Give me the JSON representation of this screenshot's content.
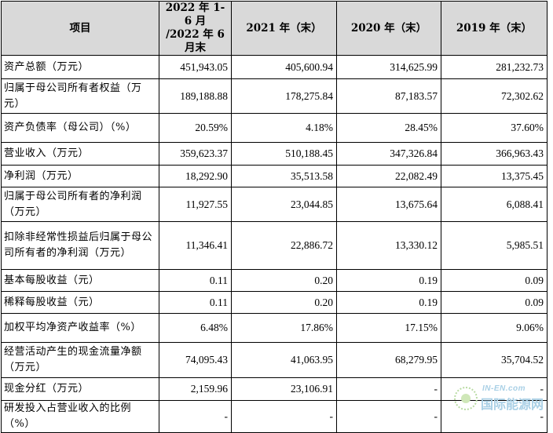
{
  "header": {
    "item": "项目",
    "col1_line1": "2022 年 1-6 月",
    "col1_line2": "/2022 年 6 月末",
    "col2": "2021 年（末）",
    "col3": "2020 年（末）",
    "col4": "2019 年（末）"
  },
  "rows": [
    {
      "label": "资产总额（万元）",
      "v1": "451,943.05",
      "v2": "405,600.94",
      "v3": "314,625.99",
      "v4": "281,232.73"
    },
    {
      "label": "归属于母公司所有者权益（万元）",
      "v1": "189,188.88",
      "v2": "178,275.84",
      "v3": "87,183.57",
      "v4": "72,302.62"
    },
    {
      "label": "资产负债率（母公司）（%）",
      "v1": "20.59%",
      "v2": "4.18%",
      "v3": "28.45%",
      "v4": "37.60%"
    },
    {
      "label": "营业收入（万元）",
      "v1": "359,623.37",
      "v2": "510,188.45",
      "v3": "347,326.84",
      "v4": "366,963.43"
    },
    {
      "label": "净利润（万元）",
      "v1": "18,292.90",
      "v2": "35,513.58",
      "v3": "22,082.49",
      "v4": "13,375.45"
    },
    {
      "label": "归属于母公司所有者的净利润（万元）",
      "v1": "11,927.55",
      "v2": "23,044.85",
      "v3": "13,675.64",
      "v4": "6,088.41"
    },
    {
      "label": "扣除非经常性损益后归属于母公司所有者的净利润（万元）",
      "v1": "11,346.41",
      "v2": "22,886.72",
      "v3": "13,330.12",
      "v4": "5,985.51"
    },
    {
      "label": "基本每股收益（元）",
      "v1": "0.11",
      "v2": "0.20",
      "v3": "0.19",
      "v4": "0.09"
    },
    {
      "label": "稀释每股收益（元）",
      "v1": "0.11",
      "v2": "0.20",
      "v3": "0.19",
      "v4": "0.09"
    },
    {
      "label": "加权平均净资产收益率（%）",
      "v1": "6.48%",
      "v2": "17.86%",
      "v3": "17.15%",
      "v4": "9.06%"
    },
    {
      "label": "经营活动产生的现金流量净额（万元）",
      "v1": "74,095.43",
      "v2": "41,063.95",
      "v3": "68,279.95",
      "v4": "35,704.52"
    },
    {
      "label": "现金分红（万元）",
      "v1": "2,159.96",
      "v2": "23,106.91",
      "v3": "-",
      "v4": "-"
    },
    {
      "label": "研发投入占营业收入的比例（%）",
      "v1": "-",
      "v2": "-",
      "v3": "-",
      "v4": "-"
    }
  ],
  "watermark": {
    "top": "IN-EN.com",
    "text": "国际能源网"
  }
}
